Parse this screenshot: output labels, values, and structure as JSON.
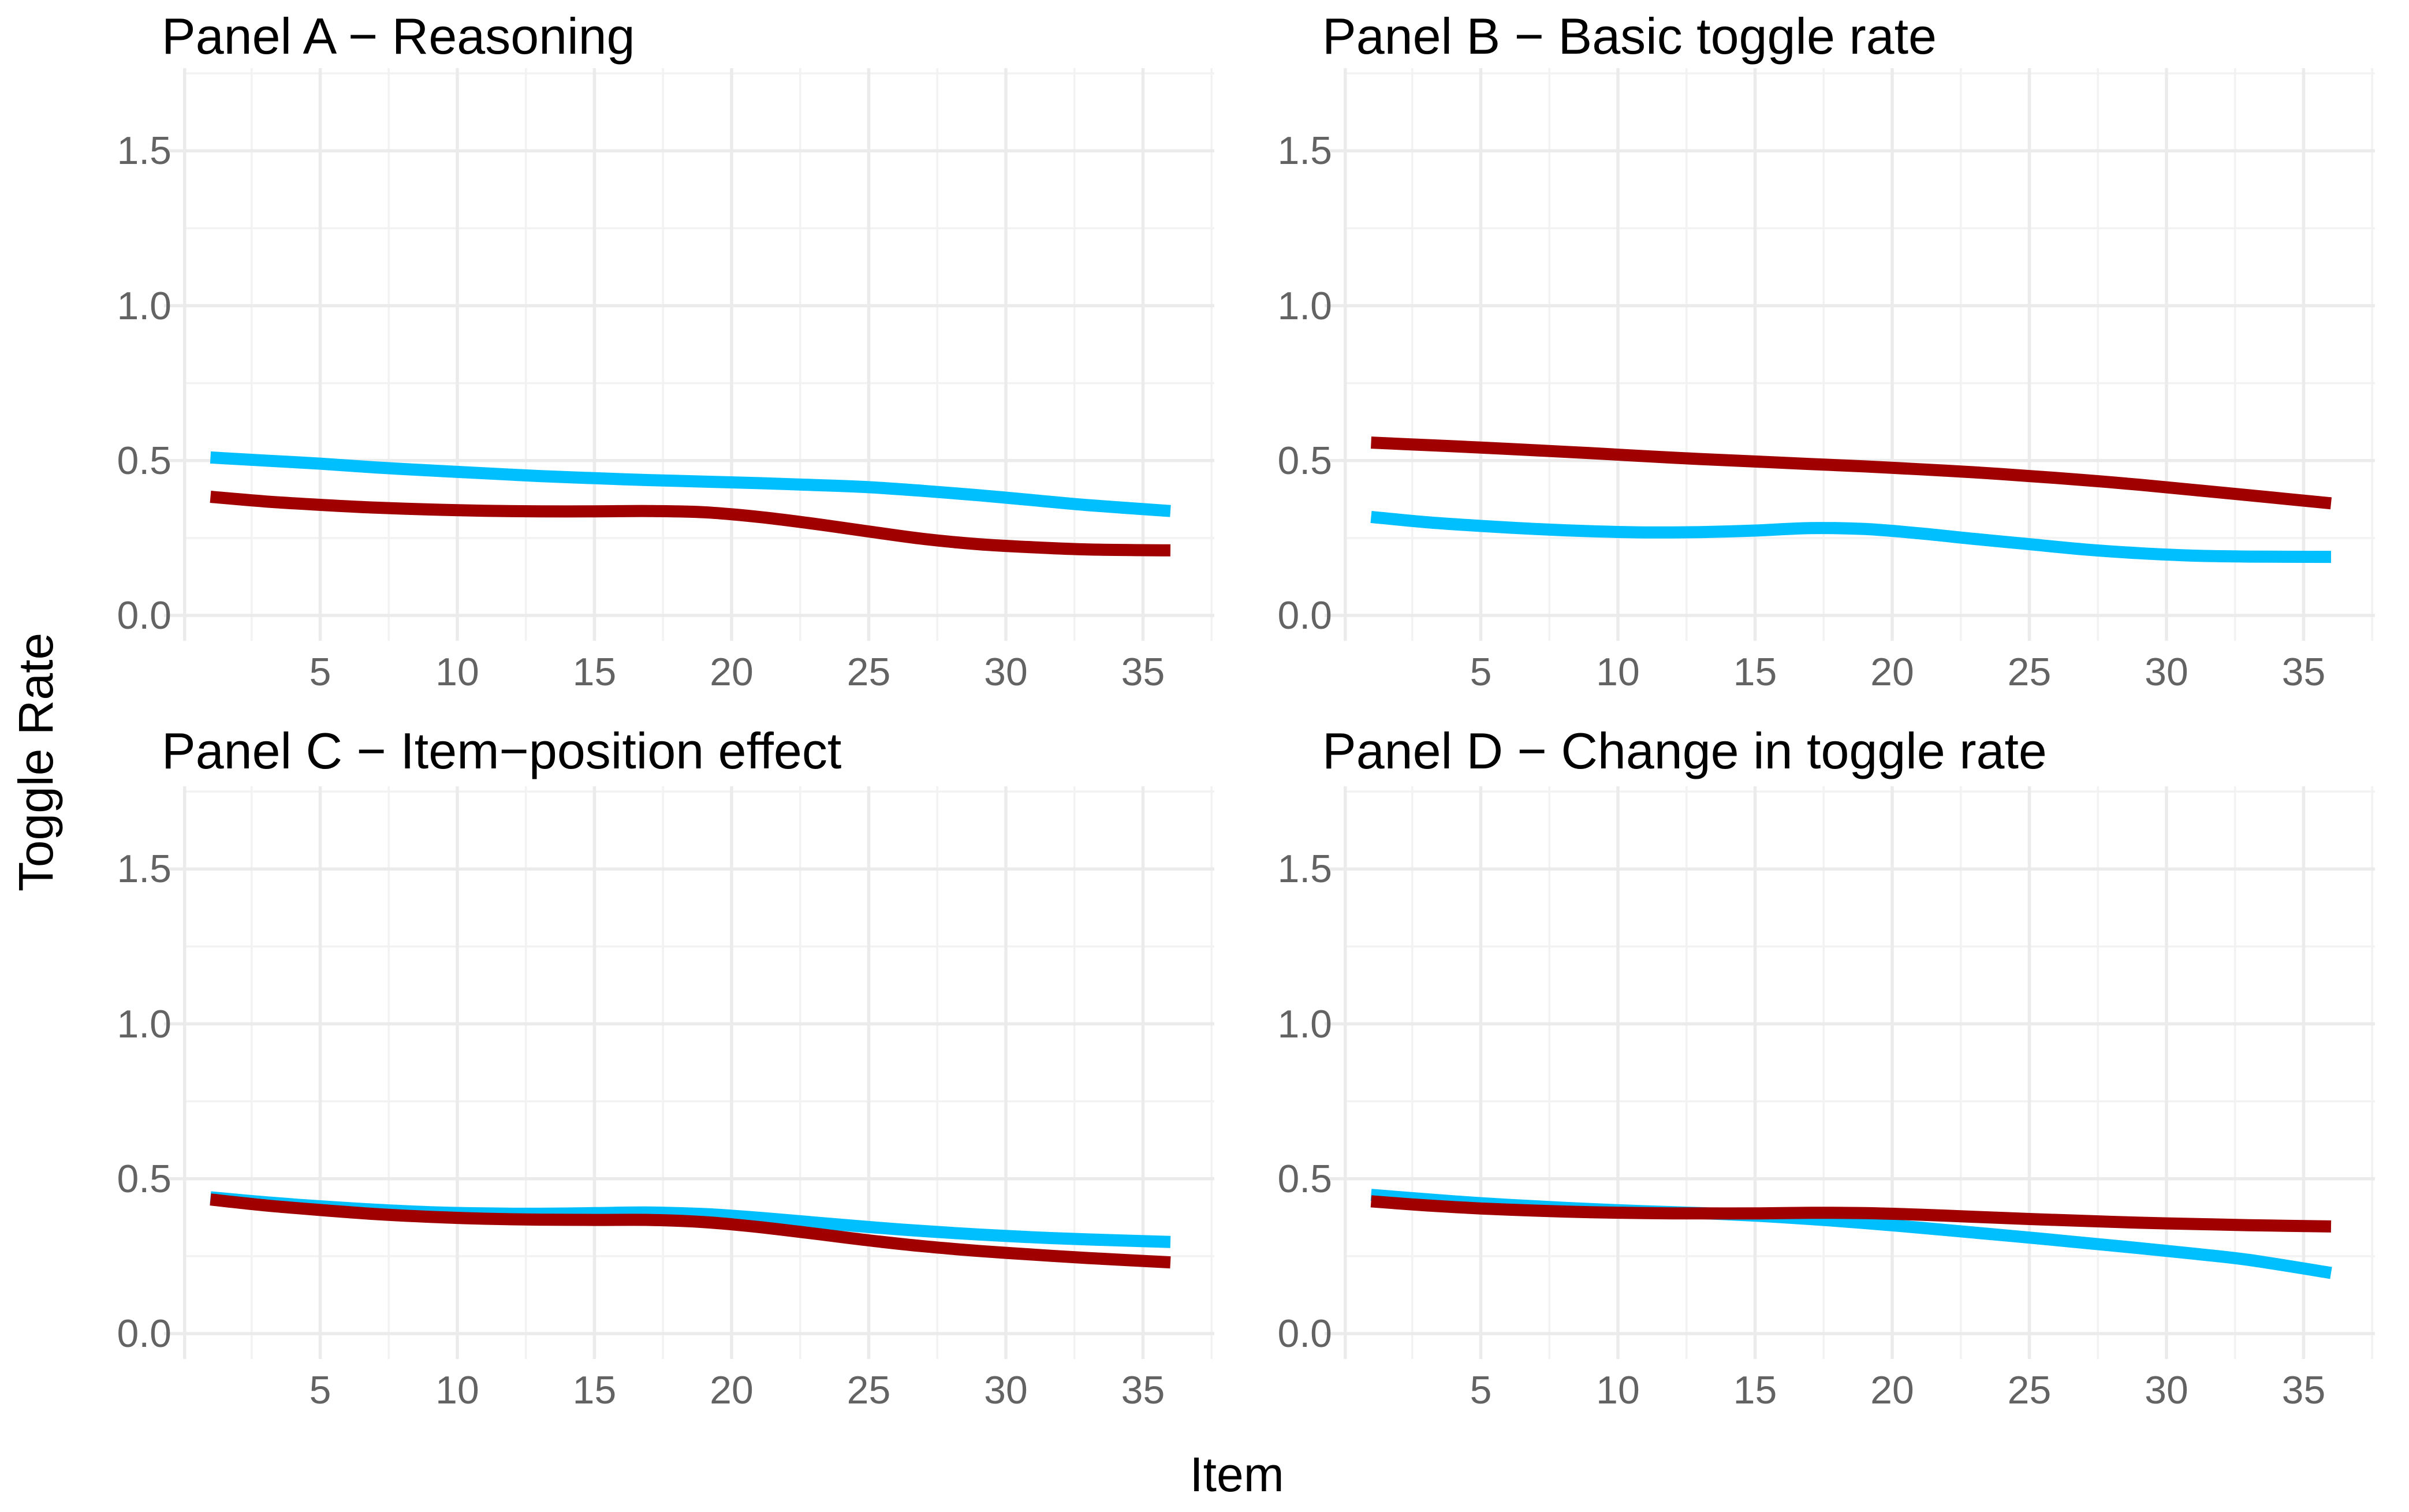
{
  "figure": {
    "background": "#FFFFFF",
    "title_color": "#000000",
    "tick_label_color": "#636363",
    "grid_major_color": "#EBEBEB",
    "grid_minor_color": "#F2F2F2",
    "line_colors": {
      "sky_blue": "#00BFFF",
      "dark_red": "#A00000"
    }
  },
  "chart_data": {
    "type": "line",
    "layout": "2x2 panel grid, no legend, white background, light gray major/minor gridlines",
    "x_axis": {
      "label": "Item",
      "domain": [
        0,
        37.6
      ],
      "ticks": [
        5,
        10,
        15,
        20,
        25,
        30,
        35
      ],
      "tick_labels": [
        "5",
        "10",
        "15",
        "20",
        "25",
        "30",
        "35"
      ],
      "major_gridlines": [
        0,
        5,
        10,
        15,
        20,
        25,
        30,
        35
      ],
      "minor_gridlines": [
        2.5,
        7.5,
        12.5,
        17.5,
        22.5,
        27.5,
        32.5,
        37.5
      ]
    },
    "y_axis": {
      "label": "Toggle Rate",
      "domain": [
        -0.082,
        1.767
      ],
      "ticks": [
        0,
        0.5,
        1.0,
        1.5
      ],
      "tick_labels": [
        "0.0",
        "0.5",
        "1.0",
        "1.5"
      ],
      "major_gridlines": [
        0,
        0.5,
        1.0,
        1.5
      ],
      "minor_gridlines": [
        0.25,
        0.75,
        1.25,
        1.75
      ]
    },
    "panels": [
      {
        "id": "a",
        "title": "Panel A − Reasoning",
        "series": [
          {
            "name": "sky-blue-line",
            "color": "#00BFFF",
            "points": [
              [
                1,
                0.51
              ],
              [
                3,
                0.5
              ],
              [
                5,
                0.49
              ],
              [
                7,
                0.478
              ],
              [
                9,
                0.468
              ],
              [
                11,
                0.459
              ],
              [
                13,
                0.45
              ],
              [
                15,
                0.443
              ],
              [
                17,
                0.437
              ],
              [
                19,
                0.432
              ],
              [
                21,
                0.427
              ],
              [
                23,
                0.421
              ],
              [
                25,
                0.414
              ],
              [
                27,
                0.402
              ],
              [
                29,
                0.388
              ],
              [
                31,
                0.372
              ],
              [
                33,
                0.356
              ],
              [
                36,
                0.337
              ]
            ]
          },
          {
            "name": "dark-red-line",
            "color": "#A00000",
            "points": [
              [
                1,
                0.383
              ],
              [
                3,
                0.368
              ],
              [
                5,
                0.357
              ],
              [
                7,
                0.348
              ],
              [
                9,
                0.342
              ],
              [
                11,
                0.338
              ],
              [
                13,
                0.336
              ],
              [
                15,
                0.336
              ],
              [
                17,
                0.337
              ],
              [
                19,
                0.333
              ],
              [
                21,
                0.318
              ],
              [
                23,
                0.296
              ],
              [
                25,
                0.271
              ],
              [
                27,
                0.247
              ],
              [
                29,
                0.23
              ],
              [
                31,
                0.22
              ],
              [
                33,
                0.213
              ],
              [
                36,
                0.21
              ]
            ]
          }
        ]
      },
      {
        "id": "b",
        "title": "Panel B − Basic toggle rate",
        "series": [
          {
            "name": "sky-blue-line",
            "color": "#00BFFF",
            "points": [
              [
                1,
                0.318
              ],
              [
                3,
                0.301
              ],
              [
                5,
                0.289
              ],
              [
                7,
                0.279
              ],
              [
                9,
                0.272
              ],
              [
                11,
                0.268
              ],
              [
                13,
                0.269
              ],
              [
                15,
                0.274
              ],
              [
                17,
                0.282
              ],
              [
                19,
                0.279
              ],
              [
                21,
                0.265
              ],
              [
                23,
                0.247
              ],
              [
                25,
                0.23
              ],
              [
                27,
                0.213
              ],
              [
                29,
                0.201
              ],
              [
                31,
                0.193
              ],
              [
                33,
                0.19
              ],
              [
                36,
                0.189
              ]
            ]
          },
          {
            "name": "dark-red-line",
            "color": "#A00000",
            "points": [
              [
                1,
                0.558
              ],
              [
                3,
                0.55
              ],
              [
                5,
                0.542
              ],
              [
                7,
                0.533
              ],
              [
                9,
                0.524
              ],
              [
                11,
                0.514
              ],
              [
                13,
                0.505
              ],
              [
                15,
                0.497
              ],
              [
                17,
                0.489
              ],
              [
                19,
                0.481
              ],
              [
                21,
                0.472
              ],
              [
                23,
                0.462
              ],
              [
                25,
                0.45
              ],
              [
                27,
                0.437
              ],
              [
                29,
                0.422
              ],
              [
                31,
                0.405
              ],
              [
                33,
                0.388
              ],
              [
                36,
                0.362
              ]
            ]
          }
        ]
      },
      {
        "id": "c",
        "title": "Panel C − Item−position effect",
        "series": [
          {
            "name": "sky-blue-line",
            "color": "#00BFFF",
            "points": [
              [
                1,
                0.44
              ],
              [
                3,
                0.424
              ],
              [
                5,
                0.411
              ],
              [
                7,
                0.4
              ],
              [
                9,
                0.392
              ],
              [
                11,
                0.388
              ],
              [
                13,
                0.387
              ],
              [
                15,
                0.389
              ],
              [
                17,
                0.391
              ],
              [
                19,
                0.386
              ],
              [
                21,
                0.374
              ],
              [
                23,
                0.359
              ],
              [
                25,
                0.344
              ],
              [
                27,
                0.331
              ],
              [
                29,
                0.32
              ],
              [
                31,
                0.311
              ],
              [
                33,
                0.304
              ],
              [
                36,
                0.296
              ]
            ]
          },
          {
            "name": "dark-red-line",
            "color": "#A00000",
            "points": [
              [
                1,
                0.433
              ],
              [
                3,
                0.414
              ],
              [
                5,
                0.399
              ],
              [
                7,
                0.386
              ],
              [
                9,
                0.377
              ],
              [
                11,
                0.371
              ],
              [
                13,
                0.368
              ],
              [
                15,
                0.367
              ],
              [
                17,
                0.367
              ],
              [
                19,
                0.36
              ],
              [
                21,
                0.344
              ],
              [
                23,
                0.323
              ],
              [
                25,
                0.301
              ],
              [
                27,
                0.282
              ],
              [
                29,
                0.267
              ],
              [
                31,
                0.255
              ],
              [
                33,
                0.244
              ],
              [
                36,
                0.23
              ]
            ]
          }
        ]
      },
      {
        "id": "d",
        "title": "Panel D − Change in toggle rate",
        "series": [
          {
            "name": "sky-blue-line",
            "color": "#00BFFF",
            "points": [
              [
                1,
                0.448
              ],
              [
                3,
                0.434
              ],
              [
                5,
                0.421
              ],
              [
                7,
                0.411
              ],
              [
                9,
                0.402
              ],
              [
                11,
                0.395
              ],
              [
                13,
                0.389
              ],
              [
                15,
                0.381
              ],
              [
                17,
                0.37
              ],
              [
                19,
                0.357
              ],
              [
                21,
                0.342
              ],
              [
                23,
                0.326
              ],
              [
                25,
                0.31
              ],
              [
                27,
                0.293
              ],
              [
                29,
                0.276
              ],
              [
                31,
                0.258
              ],
              [
                33,
                0.238
              ],
              [
                36,
                0.196
              ]
            ]
          },
          {
            "name": "dark-red-line",
            "color": "#A00000",
            "points": [
              [
                1,
                0.427
              ],
              [
                3,
                0.414
              ],
              [
                5,
                0.404
              ],
              [
                7,
                0.397
              ],
              [
                9,
                0.392
              ],
              [
                11,
                0.389
              ],
              [
                13,
                0.388
              ],
              [
                15,
                0.388
              ],
              [
                17,
                0.39
              ],
              [
                19,
                0.389
              ],
              [
                21,
                0.384
              ],
              [
                23,
                0.377
              ],
              [
                25,
                0.37
              ],
              [
                27,
                0.364
              ],
              [
                29,
                0.358
              ],
              [
                31,
                0.354
              ],
              [
                33,
                0.35
              ],
              [
                36,
                0.346
              ]
            ]
          }
        ]
      }
    ]
  }
}
